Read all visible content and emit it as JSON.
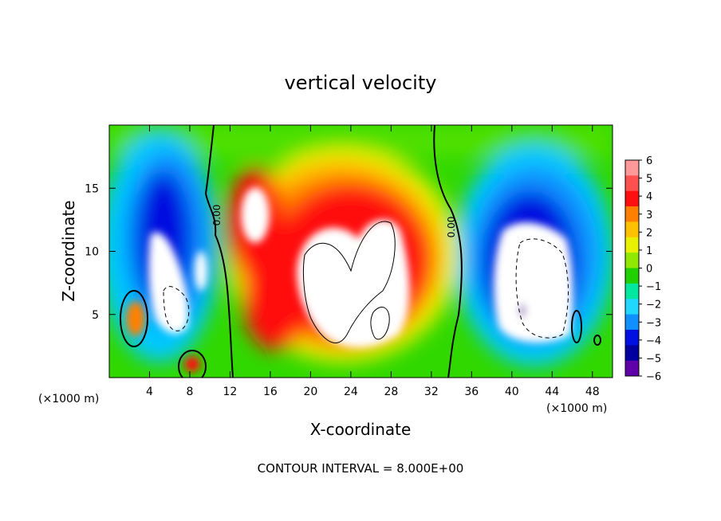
{
  "chart_data": {
    "type": "heatmap",
    "title": "vertical velocity",
    "xlabel": "X-coordinate",
    "ylabel": "Z-coordinate",
    "x_unit": "(×1000 m)",
    "x_unit_right": "(×1000 m)",
    "xlim": [
      0,
      50
    ],
    "ylim": [
      0,
      20
    ],
    "xticks": [
      "4",
      "8",
      "12",
      "16",
      "20",
      "24",
      "28",
      "32",
      "36",
      "40",
      "44",
      "48"
    ],
    "xtick_values": [
      4,
      8,
      12,
      16,
      20,
      24,
      28,
      32,
      36,
      40,
      44,
      48
    ],
    "yticks": [
      "5",
      "10",
      "15"
    ],
    "ytick_values": [
      5,
      10,
      15
    ],
    "colorbar": {
      "labels": [
        "6",
        "5",
        "4",
        "3",
        "2",
        "1",
        "0",
        "−1",
        "−2",
        "−3",
        "−4",
        "−5",
        "−6"
      ],
      "values": [
        6,
        5,
        4,
        3,
        2,
        1,
        0,
        -1,
        -2,
        -3,
        -4,
        -5,
        -6
      ],
      "colors": [
        "#ff9999",
        "#ff5050",
        "#ff1010",
        "#ff8000",
        "#ffc000",
        "#e8f000",
        "#90e800",
        "#20d000",
        "#00e8a0",
        "#20d8ff",
        "#1090ff",
        "#0010e0",
        "#0000a0",
        "#6000a8"
      ]
    },
    "contour_labels": [
      "0.00",
      "0.00"
    ],
    "footer": "CONTOUR INTERVAL = 8.000E+00"
  }
}
